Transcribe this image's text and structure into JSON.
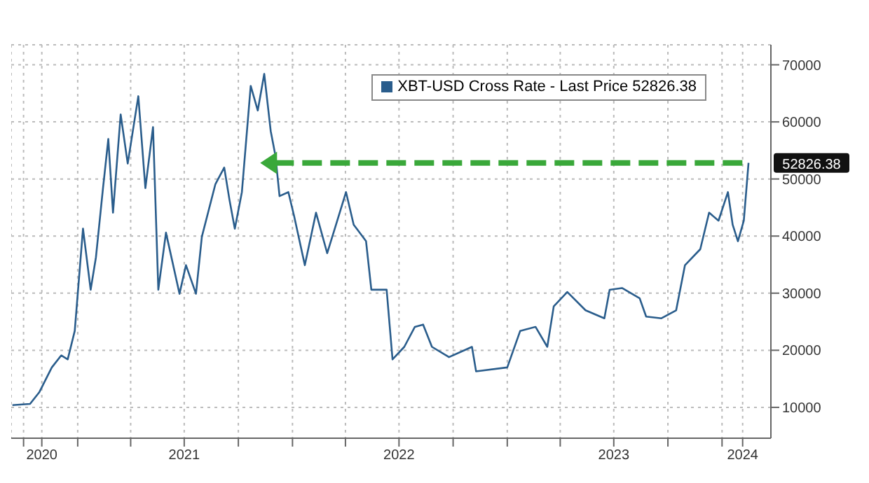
{
  "chart_data": {
    "type": "line",
    "xlim": [
      "2020-09-10",
      "2024-03-24"
    ],
    "xticks": [
      {
        "value": "2020-10-01",
        "label": null
      },
      {
        "value": "2020-11-01",
        "label": "2020"
      },
      {
        "value": "2021-01-01",
        "label": null
      },
      {
        "value": "2021-04-01",
        "label": null
      },
      {
        "value": "2021-07-01",
        "label": "2021"
      },
      {
        "value": "2021-10-01",
        "label": null
      },
      {
        "value": "2022-01-01",
        "label": null
      },
      {
        "value": "2022-04-01",
        "label": null
      },
      {
        "value": "2022-07-01",
        "label": "2022"
      },
      {
        "value": "2022-10-01",
        "label": null
      },
      {
        "value": "2023-01-01",
        "label": null
      },
      {
        "value": "2023-04-01",
        "label": null
      },
      {
        "value": "2023-07-01",
        "label": "2023"
      },
      {
        "value": "2023-10-01",
        "label": null
      },
      {
        "value": "2024-01-01",
        "label": null
      },
      {
        "value": "2024-02-05",
        "label": "2024"
      }
    ],
    "ylim": [
      4600,
      73500
    ],
    "yticks": [
      10000,
      20000,
      30000,
      40000,
      50000,
      60000,
      70000
    ],
    "grid": true,
    "legend": "top right",
    "series": [
      {
        "name": "XBT-USD Cross Rate - Last Price 52826.38",
        "color": "#2a5d8c",
        "x": [
          "2020-09-12",
          "2020-10-12",
          "2020-10-28",
          "2020-11-18",
          "2020-12-04",
          "2020-12-15",
          "2020-12-27",
          "2021-01-10",
          "2021-01-23",
          "2021-02-01",
          "2021-02-13",
          "2021-02-22",
          "2021-03-02",
          "2021-03-15",
          "2021-03-27",
          "2021-04-14",
          "2021-04-26",
          "2021-05-09",
          "2021-05-18",
          "2021-05-31",
          "2021-06-23",
          "2021-07-04",
          "2021-07-21",
          "2021-07-31",
          "2021-08-23",
          "2021-09-07",
          "2021-09-16",
          "2021-09-25",
          "2021-10-07",
          "2021-10-22",
          "2021-11-03",
          "2021-11-14",
          "2021-11-25",
          "2021-12-03",
          "2021-12-10",
          "2021-12-25",
          "2022-01-04",
          "2022-01-22",
          "2022-02-10",
          "2022-03-01",
          "2022-03-16",
          "2022-04-02",
          "2022-04-15",
          "2022-05-06",
          "2022-05-15",
          "2022-06-10",
          "2022-06-20",
          "2022-07-10",
          "2022-07-28",
          "2022-08-11",
          "2022-08-26",
          "2022-09-24",
          "2022-11-02",
          "2022-11-09",
          "2023-01-01",
          "2023-01-23",
          "2023-02-18",
          "2023-03-10",
          "2023-03-21",
          "2023-04-13",
          "2023-05-14",
          "2023-06-15",
          "2023-06-24",
          "2023-07-15",
          "2023-08-14",
          "2023-08-25",
          "2023-09-20",
          "2023-10-15",
          "2023-10-30",
          "2023-11-25",
          "2023-12-10",
          "2023-12-26",
          "2024-01-11",
          "2024-01-19",
          "2024-01-28",
          "2024-02-07",
          "2024-02-15"
        ],
        "values": [
          10400,
          10600,
          12700,
          17000,
          19100,
          18400,
          23400,
          41300,
          30600,
          36300,
          48400,
          57000,
          44100,
          61300,
          52700,
          64500,
          48400,
          59100,
          30600,
          40600,
          29900,
          34900,
          29900,
          39900,
          49100,
          52000,
          46300,
          41300,
          47700,
          66300,
          62000,
          68400,
          58400,
          54100,
          47000,
          47700,
          43400,
          34900,
          44100,
          37000,
          42000,
          47700,
          42000,
          39100,
          30600,
          30600,
          18400,
          20600,
          24100,
          24500,
          20600,
          18800,
          20600,
          16300,
          17000,
          23400,
          24100,
          20600,
          27700,
          30200,
          27000,
          25600,
          30600,
          30900,
          29100,
          25900,
          25600,
          27000,
          34900,
          37700,
          44100,
          42700,
          47700,
          42000,
          39100,
          42700,
          52826.38
        ]
      },
      {
        "color": "#3aa83a",
        "line_style": "dashed",
        "x": [
          "2021-12-01",
          "2024-02-15"
        ],
        "values": [
          52826.38,
          52826.38
        ]
      }
    ],
    "annotations": [
      {
        "text": "52826.38",
        "x": "2024-02-15",
        "y": 52826.38
      }
    ]
  }
}
